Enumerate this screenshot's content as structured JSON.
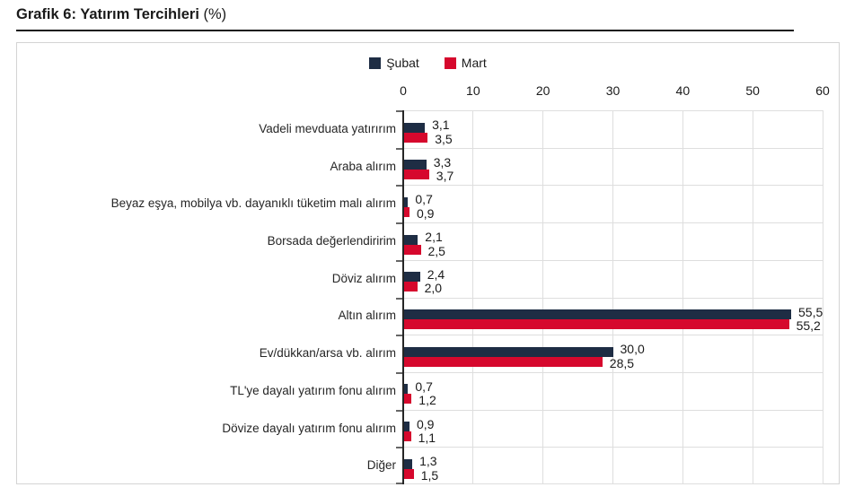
{
  "header": {
    "title": "Grafik 6: Yatırım Tercihleri",
    "title_suffix": "(%)"
  },
  "chart_data": {
    "type": "bar",
    "orientation": "horizontal",
    "title": "Grafik 6: Yatırım Tercihleri (%)",
    "legend_position": "top-center",
    "grid": true,
    "xlim": [
      0,
      60
    ],
    "x_ticks": [
      0,
      10,
      20,
      30,
      40,
      50,
      60
    ],
    "decimal_separator": ",",
    "categories": [
      "Vadeli mevduata yatırırım",
      "Araba alırım",
      "Beyaz eşya, mobilya vb. dayanıklı tüketim malı alırım",
      "Borsada değerlendiririm",
      "Döviz alırım",
      "Altın alırım",
      "Ev/dükkan/arsa vb. alırım",
      "TL'ye dayalı yatırım fonu alırım",
      "Dövize dayalı yatırım fonu alırım",
      "Diğer"
    ],
    "series": [
      {
        "name": "Şubat",
        "color": "#1e2d44",
        "values": [
          3.1,
          3.3,
          0.7,
          2.1,
          2.4,
          55.5,
          30.0,
          0.7,
          0.9,
          1.3
        ]
      },
      {
        "name": "Mart",
        "color": "#d6082d",
        "values": [
          3.5,
          3.7,
          0.9,
          2.5,
          2.0,
          55.2,
          28.5,
          1.2,
          1.1,
          1.5
        ]
      }
    ]
  }
}
